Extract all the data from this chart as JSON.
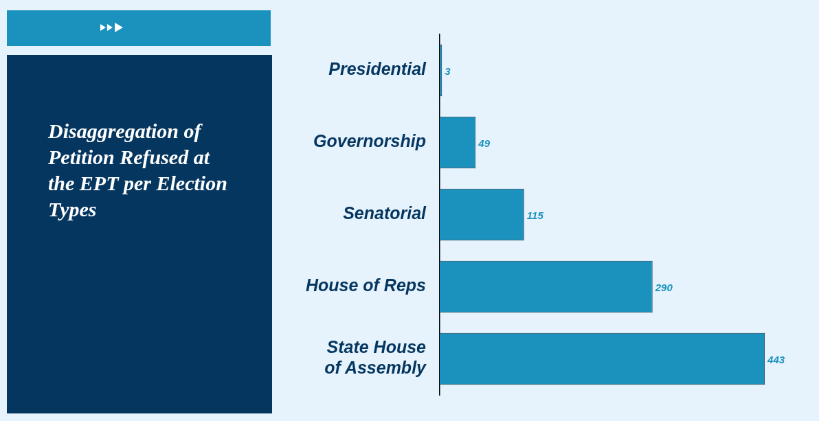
{
  "chart_data": {
    "type": "bar",
    "orientation": "horizontal",
    "title": "Disaggregation of Petition Refused at the EPT per Election Types",
    "categories": [
      "Presidential",
      "Governorship",
      "Senatorial",
      "House of Reps",
      "State House of Assembly"
    ],
    "values": [
      3,
      49,
      115,
      290,
      443
    ],
    "color": "#1a92bd",
    "data_labels": true,
    "grid": false,
    "legend": false
  }
}
